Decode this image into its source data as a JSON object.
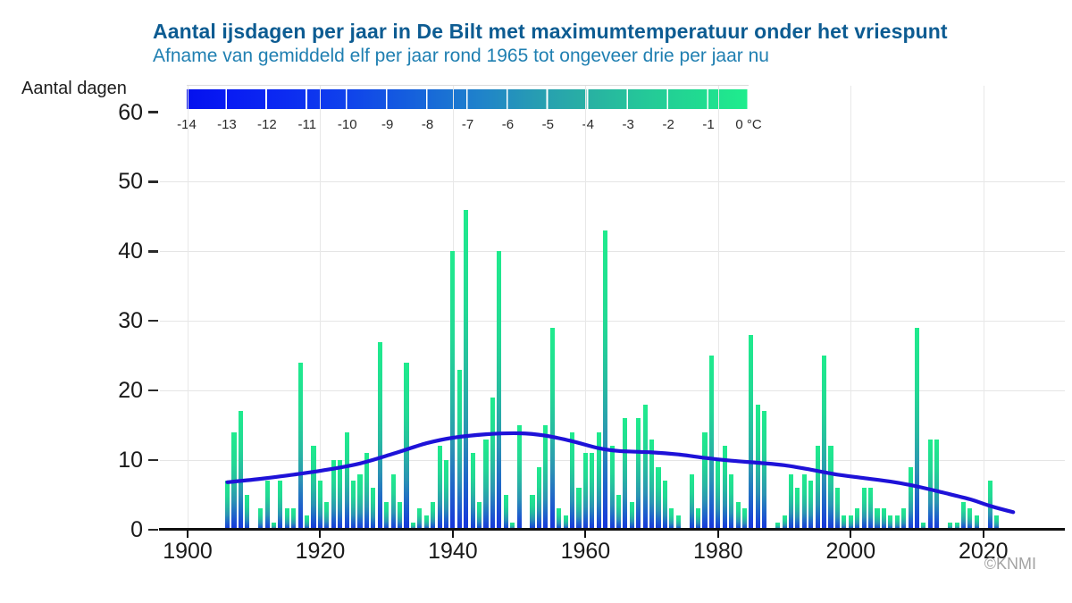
{
  "header": {
    "title": "Aantal ijsdagen per jaar in De Bilt met maximumtemperatuur onder het vriespunt",
    "subtitle": "Afname van gemiddeld elf per jaar rond 1965 tot ongeveer drie per jaar nu"
  },
  "y_axis_title": "Aantal dagen",
  "copyright": "©KNMI",
  "legend": {
    "tick_labels": [
      "-14",
      "-13",
      "-12",
      "-11",
      "-10",
      "-9",
      "-8",
      "-7",
      "-6",
      "-5",
      "-4",
      "-3",
      "-2",
      "-1",
      "0 °C"
    ],
    "color_left": "#0411ee",
    "color_right": "#1fee8d"
  },
  "colors": {
    "title": "#0d5c92",
    "subtitle": "#1f7fb1",
    "trend_line": "#1e12d8",
    "bar_bottom": "#1734dc",
    "bar_top": "#1feb8d",
    "grid": "#e5e5e5",
    "axis_text": "#1a1a1a",
    "copyright": "#a3a3a3"
  },
  "chart_data": {
    "type": "bar",
    "title": "Aantal ijsdagen per jaar in De Bilt met maximumtemperatuur onder het vriespunt",
    "subtitle": "Afname van gemiddeld elf per jaar rond 1965 tot ongeveer drie per jaar nu",
    "xlabel": "",
    "ylabel": "Aantal dagen",
    "xlim": [
      1896,
      2028
    ],
    "ylim": [
      0,
      60
    ],
    "grid": true,
    "x_ticks": [
      1900,
      1920,
      1940,
      1960,
      1980,
      2000,
      2020
    ],
    "y_ticks": [
      0,
      10,
      20,
      30,
      40,
      50,
      60
    ],
    "bars": {
      "name": "ijsdagen per jaar",
      "start_year": 1906,
      "end_year": 2022,
      "values": [
        7,
        14,
        17,
        5,
        0,
        3,
        7,
        1,
        7,
        3,
        3,
        24,
        2,
        12,
        7,
        4,
        10,
        10,
        14,
        7,
        8,
        11,
        6,
        27,
        4,
        8,
        4,
        24,
        1,
        3,
        2,
        4,
        12,
        10,
        40,
        23,
        46,
        11,
        4,
        13,
        19,
        40,
        5,
        1,
        15,
        0,
        5,
        9,
        15,
        29,
        3,
        2,
        14,
        6,
        11,
        11,
        14,
        43,
        12,
        5,
        16,
        4,
        16,
        18,
        13,
        9,
        7,
        3,
        2,
        0,
        8,
        3,
        14,
        25,
        10,
        12,
        8,
        4,
        3,
        28,
        18,
        17,
        0,
        1,
        2,
        8,
        6,
        8,
        7,
        12,
        25,
        12,
        6,
        2,
        2,
        3,
        6,
        6,
        3,
        3,
        2,
        2,
        3,
        9,
        29,
        1,
        13,
        13,
        0,
        1,
        1,
        4,
        3,
        2,
        0,
        7,
        2
      ]
    },
    "series": [
      {
        "name": "trendlijn (gladgestreken gemiddelde)",
        "type": "line",
        "points": [
          [
            1906,
            6.8
          ],
          [
            1911,
            7.3
          ],
          [
            1916,
            7.9
          ],
          [
            1921,
            8.6
          ],
          [
            1926,
            9.5
          ],
          [
            1931,
            10.9
          ],
          [
            1936,
            12.4
          ],
          [
            1940,
            13.2
          ],
          [
            1945,
            13.7
          ],
          [
            1950,
            13.85
          ],
          [
            1954,
            13.5
          ],
          [
            1958,
            12.7
          ],
          [
            1962,
            11.7
          ],
          [
            1965,
            11.3
          ],
          [
            1970,
            11.1
          ],
          [
            1974,
            10.8
          ],
          [
            1978,
            10.3
          ],
          [
            1982,
            9.9
          ],
          [
            1986,
            9.6
          ],
          [
            1990,
            9.25
          ],
          [
            1994,
            8.6
          ],
          [
            1998,
            7.9
          ],
          [
            2002,
            7.4
          ],
          [
            2006,
            6.9
          ],
          [
            2010,
            6.2
          ],
          [
            2014,
            5.3
          ],
          [
            2018,
            4.35
          ],
          [
            2021,
            3.4
          ],
          [
            2024.5,
            2.5
          ]
        ]
      }
    ],
    "legend_colorbar": {
      "label_unit": "°C",
      "range": [
        -14,
        0
      ],
      "meaning": "kleur van dagen in staaf: maximumtemperatuur van koud (blauw) naar 0 °C (groen)"
    }
  }
}
